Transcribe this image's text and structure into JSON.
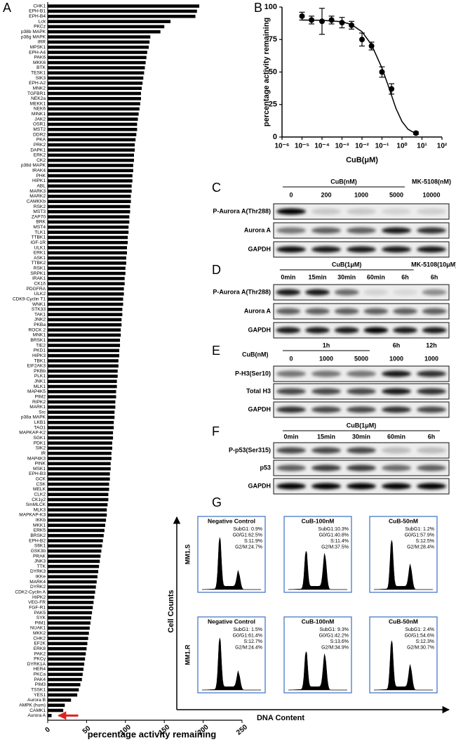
{
  "chart_data": [
    {
      "type": "hbar",
      "panel": "A",
      "xlabel": "percentage activity remaining",
      "color": "#000000",
      "categories": [
        "CHK1",
        "EPH-B1",
        "EPH-B4",
        "Lck",
        "PKCz",
        "p38b MAPK",
        "p38g MAPK",
        "IRR",
        "MPSK1",
        "EPH-A4",
        "PAK6",
        "MKK6",
        "BTK",
        "TESK1",
        "SIK3",
        "EPH-A2",
        "MNK2",
        "TGFBR1",
        "NEK2a",
        "MEKK1",
        "NEK6",
        "MINK1",
        "JAK2",
        "OSR1",
        "MST2",
        "DDR2",
        "PKA",
        "PRK2",
        "DAPK1",
        "ERK2",
        "CK2",
        "p38d MAPK",
        "IRAK4",
        "PHK",
        "HIPK1",
        "ABL",
        "MARK3",
        "MARK2",
        "CAMKKb",
        "RSK2",
        "MST3",
        "ZAP70",
        "BRK",
        "MST4",
        "TLK1",
        "TTBK1",
        "IGF-1R",
        "ULK1",
        "ERK1",
        "ASK1",
        "TTBK2",
        "RSK1",
        "SRPK1",
        "IRAK1",
        "CK1δ",
        "PDGFRA",
        "ULK2",
        "CDK9-Cyclin T1",
        "WNK1",
        "STK33",
        "TAK1",
        "JNK2",
        "PKBa",
        "ROCK 2",
        "MNK1",
        "BRSK1",
        "TIE2",
        "PKD1",
        "HIPK3",
        "TBK1",
        "EIF2AK3",
        "PKBb",
        "PLK1",
        "JNK1",
        "MLK1",
        "MAP4K5",
        "PIM2",
        "RIPK2",
        "MARK1",
        "Src",
        "p38a MAPK",
        "LKB1",
        "TAO1",
        "MAPKAP-K2",
        "SGK1",
        "PDK1",
        "SIK2",
        "IR",
        "MAP4K3",
        "PINK",
        "MSK1",
        "EPH-B3",
        "GCK",
        "CSK",
        "MELK",
        "CLK2",
        "CK1γ2",
        "SmMLCK",
        "MLK3",
        "MAPKAP-K3",
        "IKKb",
        "MKK1",
        "ERK5",
        "BRSK2",
        "EPH-B2",
        "S6K1",
        "GSK3b",
        "PRAK",
        "JNK3",
        "TTK",
        "DYRK3",
        "IKKe",
        "MARK4",
        "DYRK2",
        "CDK2-Cyclin A",
        "HIPK2",
        "VEG-FR",
        "FGF-R1",
        "PAK5",
        "SYK",
        "PIM1",
        "NUAK1",
        "MKK2",
        "CHK2",
        "EF2K",
        "ERK8",
        "PAK2",
        "PKCγ",
        "DYRK1A",
        "HER4",
        "PKCa",
        "PAK4",
        "PIM3",
        "TSSK1",
        "YES1",
        "Aurora B",
        "AMPK (hum)",
        "CAMK1",
        "Aurora A"
      ],
      "values": [
        195,
        192,
        190,
        158,
        150,
        145,
        132,
        131,
        130,
        128,
        127,
        126,
        125,
        124,
        123,
        122,
        121,
        120,
        120,
        119,
        118,
        117,
        116,
        115,
        115,
        114,
        113,
        112,
        112,
        111,
        111,
        110,
        110,
        109,
        109,
        108,
        108,
        107,
        107,
        106,
        106,
        105,
        105,
        104,
        104,
        103,
        103,
        102,
        102,
        101,
        101,
        100,
        100,
        99,
        99,
        98,
        98,
        97,
        97,
        96,
        96,
        95,
        95,
        94,
        94,
        93,
        93,
        92,
        92,
        91,
        91,
        90,
        90,
        89,
        89,
        88,
        88,
        87,
        87,
        86,
        86,
        85,
        85,
        84,
        84,
        83,
        83,
        82,
        82,
        81,
        81,
        80,
        80,
        79,
        79,
        78,
        78,
        77,
        76,
        76,
        75,
        74,
        73,
        72,
        71,
        70,
        69,
        68,
        67,
        66,
        65,
        64,
        63,
        62,
        61,
        60,
        59,
        58,
        57,
        56,
        55,
        54,
        53,
        52,
        51,
        50,
        49,
        48,
        47,
        46,
        45,
        44,
        42,
        40,
        38,
        30,
        22,
        20,
        5
      ],
      "xlim": [
        0,
        250
      ],
      "xticks": [
        0,
        50,
        100,
        150,
        200,
        250
      ]
    },
    {
      "type": "scatter",
      "panel": "B",
      "ylabel": "percentage activity remaining",
      "xlabel": "CuB(μM)",
      "log_x": true,
      "color": "#000000",
      "x": [
        1e-05,
        3e-05,
        0.0001,
        0.0003,
        0.001,
        0.003,
        0.01,
        0.03,
        0.1,
        0.3,
        5
      ],
      "values": [
        93,
        90,
        89,
        90,
        88,
        86,
        75,
        70,
        50,
        37,
        3
      ],
      "errors": [
        3,
        3,
        10,
        3,
        4,
        3,
        5,
        3,
        4,
        4,
        1
      ],
      "fit": {
        "x": [
          1e-05,
          0.0001,
          0.001,
          0.003,
          0.01,
          0.03,
          0.1,
          0.2,
          0.5,
          1,
          2,
          5
        ],
        "values": [
          90,
          89.8,
          88.7,
          86.5,
          81,
          71,
          53,
          40,
          22,
          12,
          6,
          2.5
        ]
      },
      "xlim": [
        1e-06,
        100
      ],
      "xticks": [
        {
          "value": 1e-06,
          "label": "10⁻⁶"
        },
        {
          "value": 1e-05,
          "label": "10⁻⁵"
        },
        {
          "value": 0.0001,
          "label": "10⁻⁴"
        },
        {
          "value": 0.001,
          "label": "10⁻³"
        },
        {
          "value": 0.01,
          "label": "10⁻²"
        },
        {
          "value": 0.1,
          "label": "10⁻¹"
        },
        {
          "value": 1,
          "label": "10⁰"
        },
        {
          "value": 10,
          "label": "10¹"
        },
        {
          "value": 100,
          "label": "10²"
        }
      ],
      "ylim": [
        0,
        100
      ],
      "yticks": [
        0,
        25,
        50,
        75,
        100
      ]
    }
  ],
  "blots": [
    {
      "panel": "C",
      "groups": [
        {
          "label": "CuB(nM)",
          "lanes": [
            "0",
            "200",
            "1000",
            "5000"
          ]
        },
        {
          "label": "MK-5108(nM)",
          "lanes": [
            "10000"
          ]
        }
      ],
      "rows": [
        "P-Aurora A(Thr288)",
        "Aurora A",
        "GAPDH"
      ]
    },
    {
      "panel": "D",
      "groups": [
        {
          "label": "CuB(1μM)",
          "lanes": [
            "0min",
            "15min",
            "30min",
            "60min",
            "6h"
          ]
        },
        {
          "label": "MK-5108(10μM)",
          "lanes": [
            "6h"
          ]
        }
      ],
      "rows": [
        "P-Aurora A(Thr288)",
        "Aurora A",
        "GAPDH"
      ]
    },
    {
      "panel": "E",
      "treatment": "CuB(nM)",
      "groups": [
        {
          "label": "1h",
          "lanes": [
            "0",
            "1000",
            "5000"
          ]
        },
        {
          "label": "6h",
          "lanes": [
            "1000"
          ]
        },
        {
          "label": "12h",
          "lanes": [
            "1000"
          ]
        }
      ],
      "rows": [
        "P-H3(Ser10)",
        "Total H3",
        "GAPDH"
      ]
    },
    {
      "panel": "F",
      "groups": [
        {
          "label": "CuB(1μM)",
          "lanes": [
            "0min",
            "15min",
            "30min",
            "60min",
            "6h"
          ]
        }
      ],
      "rows": [
        "P-p53(Ser315)",
        "p53",
        "GAPDH"
      ]
    }
  ],
  "flow": {
    "panel": "G",
    "y_label": "Cell Counts",
    "x_label": "DNA Content",
    "rows": [
      {
        "label": "MM1.S",
        "plots": [
          {
            "title": "Negative Control",
            "stats": [
              "SubG1: 0.9%",
              "G0/G1:62.5%",
              "S:11.9%",
              "G2/M:24.7%"
            ]
          },
          {
            "title": "CuB-100nM",
            "stats": [
              "SubG1:10.3%",
              "G0/G1:40.8%",
              "S:11.4%",
              "G2/M:37.5%"
            ]
          },
          {
            "title": "CuB-50nM",
            "stats": [
              "SubG1: 1.2%",
              "G0/G1:57.9%",
              "S:12.5%",
              "G2/M:28.4%"
            ]
          }
        ]
      },
      {
        "label": "MM1.R",
        "plots": [
          {
            "title": "Negative Control",
            "stats": [
              "SubG1: 1.5%",
              "G0/G1:61.4%",
              "S:12.7%",
              "G2/M:24.4%"
            ]
          },
          {
            "title": "CuB-100nM",
            "stats": [
              "SubG1: 9.3%",
              "G0/G1:42.2%",
              "S:13.6%",
              "G2/M:34.9%"
            ]
          },
          {
            "title": "CuB-50nM",
            "stats": [
              "SubG1: 2.4%",
              "G0/G1:54.6%",
              "S:12.3%",
              "G2/M:30.7%"
            ]
          }
        ]
      }
    ]
  }
}
